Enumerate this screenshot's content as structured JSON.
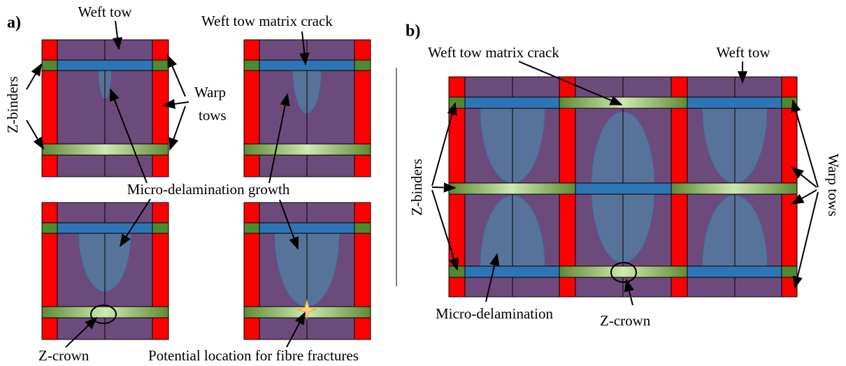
{
  "panel_a": {
    "label": "a)",
    "weft_tow": "Weft tow",
    "matrix_crack": "Weft tow matrix crack",
    "z_binders": "Z-binders",
    "warp_tows": [
      "Warp",
      "tows"
    ],
    "growth": "Micro-delamination growth",
    "z_crown": "Z-crown",
    "fibre_fractures": "Potential location for fibre fractures"
  },
  "panel_b": {
    "label": "b)",
    "matrix_crack": "Weft tow matrix crack",
    "weft_tow": "Weft tow",
    "z_binders": "Z-binders",
    "warp_tows": "Warp tows",
    "micro_delamination": "Micro-delamination",
    "z_crown": "Z-crown"
  }
}
